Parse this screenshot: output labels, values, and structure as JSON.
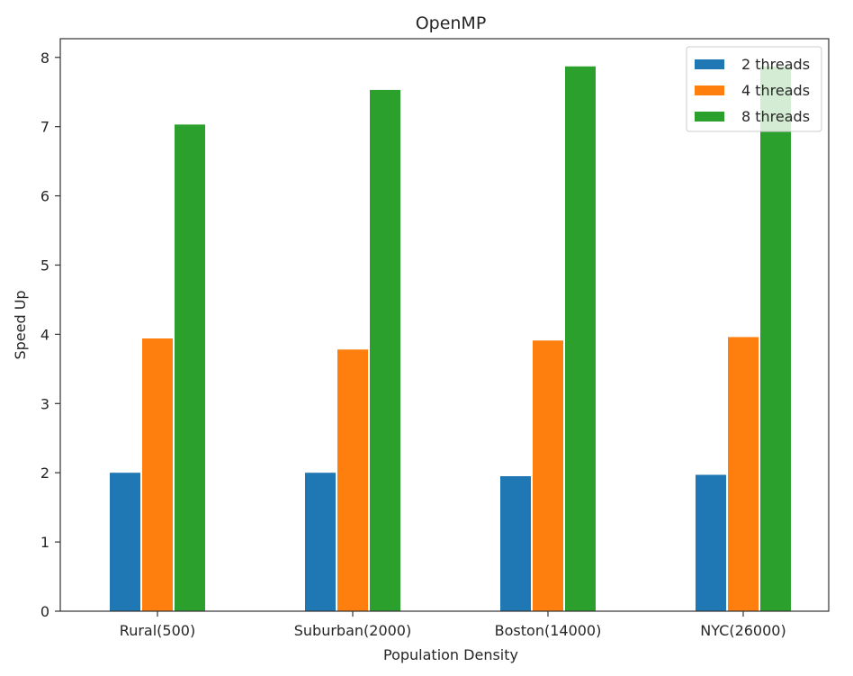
{
  "chart_data": {
    "type": "bar",
    "title": "OpenMP",
    "xlabel": "Population Density",
    "ylabel": "Speed Up",
    "categories": [
      "Rural(500)",
      "Suburban(2000)",
      "Boston(14000)",
      "NYC(26000)"
    ],
    "series": [
      {
        "name": "2 threads",
        "color": "#1f77b4",
        "values": [
          2.0,
          2.0,
          1.95,
          1.97
        ]
      },
      {
        "name": "4 threads",
        "color": "#ff7f0e",
        "values": [
          3.94,
          3.78,
          3.91,
          3.96
        ]
      },
      {
        "name": "8 threads",
        "color": "#2ca02c",
        "values": [
          7.03,
          7.53,
          7.87,
          7.87
        ]
      }
    ],
    "ylim": [
      0,
      8.27
    ],
    "yticks": [
      0,
      1,
      2,
      3,
      4,
      5,
      6,
      7,
      8
    ],
    "grid": false,
    "legend_position": "top-right"
  }
}
